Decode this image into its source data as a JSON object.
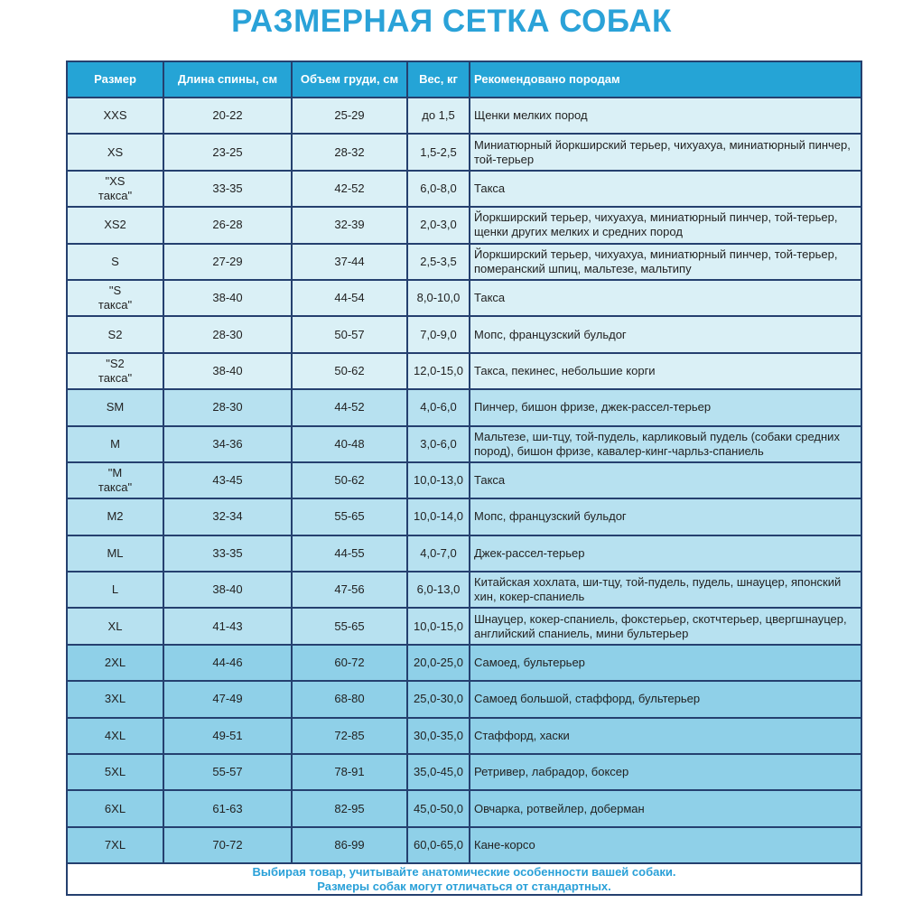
{
  "title": "РАЗМЕРНАЯ СЕТКА СОБАК",
  "headers": [
    "Размер",
    "Длина спины, см",
    "Объем груди, см",
    "Вес, кг",
    "Рекомендовано породам"
  ],
  "colors": {
    "title": "#2aa2d8",
    "header": "#25a4d6",
    "row_light": "#daf0f6",
    "row_mid": "#b7e1f0",
    "row_dark": "#8fd0e8",
    "border": "#25406f"
  },
  "rows": [
    {
      "size": "XXS",
      "back": "20-22",
      "chest": "25-29",
      "weight": "до 1,5",
      "breeds": "Щенки мелких пород",
      "group": "g1"
    },
    {
      "size": "XS",
      "back": "23-25",
      "chest": "28-32",
      "weight": "1,5-2,5",
      "breeds": "Миниатюрный йоркширский терьер, чихуахуа, миниатюрный пинчер, той-терьер",
      "group": "g1"
    },
    {
      "size": "\"XS такса\"",
      "back": "33-35",
      "chest": "42-52",
      "weight": "6,0-8,0",
      "breeds": "Такса",
      "group": "g1"
    },
    {
      "size": "XS2",
      "back": "26-28",
      "chest": "32-39",
      "weight": "2,0-3,0",
      "breeds": "Йоркширский терьер, чихуахуа, миниатюрный пинчер, той-терьер, щенки других мелких и средних пород",
      "group": "g1"
    },
    {
      "size": "S",
      "back": "27-29",
      "chest": "37-44",
      "weight": "2,5-3,5",
      "breeds": "Йоркширский терьер, чихуахуа, миниатюрный пинчер, той-терьер, померанский шпиц, мальтезе, мальтипу",
      "group": "g1"
    },
    {
      "size": "\"S такса\"",
      "back": "38-40",
      "chest": "44-54",
      "weight": "8,0-10,0",
      "breeds": "Такса",
      "group": "g1"
    },
    {
      "size": "S2",
      "back": "28-30",
      "chest": "50-57",
      "weight": "7,0-9,0",
      "breeds": "Мопс, французский бульдог",
      "group": "g1"
    },
    {
      "size": "\"S2 такса\"",
      "back": "38-40",
      "chest": "50-62",
      "weight": "12,0-15,0",
      "breeds": "Такса, пекинес, небольшие корги",
      "group": "g1"
    },
    {
      "size": "SM",
      "back": "28-30",
      "chest": "44-52",
      "weight": "4,0-6,0",
      "breeds": "Пинчер, бишон фризе, джек-рассел-терьер",
      "group": "g2"
    },
    {
      "size": "M",
      "back": "34-36",
      "chest": "40-48",
      "weight": "3,0-6,0",
      "breeds": "Мальтезе, ши-тцу, той-пудель, карликовый пудель (собаки средних пород), бишон фризе, кавалер-кинг-чарльз-спаниель",
      "group": "g2"
    },
    {
      "size": "\"M такса\"",
      "back": "43-45",
      "chest": "50-62",
      "weight": "10,0-13,0",
      "breeds": "Такса",
      "group": "g2"
    },
    {
      "size": "M2",
      "back": "32-34",
      "chest": "55-65",
      "weight": "10,0-14,0",
      "breeds": "Мопс, французский бульдог",
      "group": "g2"
    },
    {
      "size": "ML",
      "back": "33-35",
      "chest": "44-55",
      "weight": "4,0-7,0",
      "breeds": "Джек-рассел-терьер",
      "group": "g2"
    },
    {
      "size": "L",
      "back": "38-40",
      "chest": "47-56",
      "weight": "6,0-13,0",
      "breeds": "Китайская хохлата, ши-тцу, той-пудель, пудель, шнауцер, японский хин, кокер-спаниель",
      "group": "g2"
    },
    {
      "size": "XL",
      "back": "41-43",
      "chest": "55-65",
      "weight": "10,0-15,0",
      "breeds": "Шнауцер, кокер-спаниель, фокстерьер, скотчтерьер, цвергшнауцер, английский спаниель, мини бультерьер",
      "group": "g2"
    },
    {
      "size": "2XL",
      "back": "44-46",
      "chest": "60-72",
      "weight": "20,0-25,0",
      "breeds": "Самоед, бультерьер",
      "group": "g3"
    },
    {
      "size": "3XL",
      "back": "47-49",
      "chest": "68-80",
      "weight": "25,0-30,0",
      "breeds": "Самоед большой, стаффорд, бультерьер",
      "group": "g3"
    },
    {
      "size": "4XL",
      "back": "49-51",
      "chest": "72-85",
      "weight": "30,0-35,0",
      "breeds": "Стаффорд, хаски",
      "group": "g3"
    },
    {
      "size": "5XL",
      "back": "55-57",
      "chest": "78-91",
      "weight": "35,0-45,0",
      "breeds": "Ретривер, лабрадор, боксер",
      "group": "g3"
    },
    {
      "size": "6XL",
      "back": "61-63",
      "chest": "82-95",
      "weight": "45,0-50,0",
      "breeds": "Овчарка, ротвейлер, доберман",
      "group": "g3"
    },
    {
      "size": "7XL",
      "back": "70-72",
      "chest": "86-99",
      "weight": "60,0-65,0",
      "breeds": "Кане-корсо",
      "group": "g3"
    }
  ],
  "footer": [
    "Выбирая товар, учитывайте анатомические особенности вашей собаки.",
    "Размеры собак могут отличаться от стандартных."
  ]
}
